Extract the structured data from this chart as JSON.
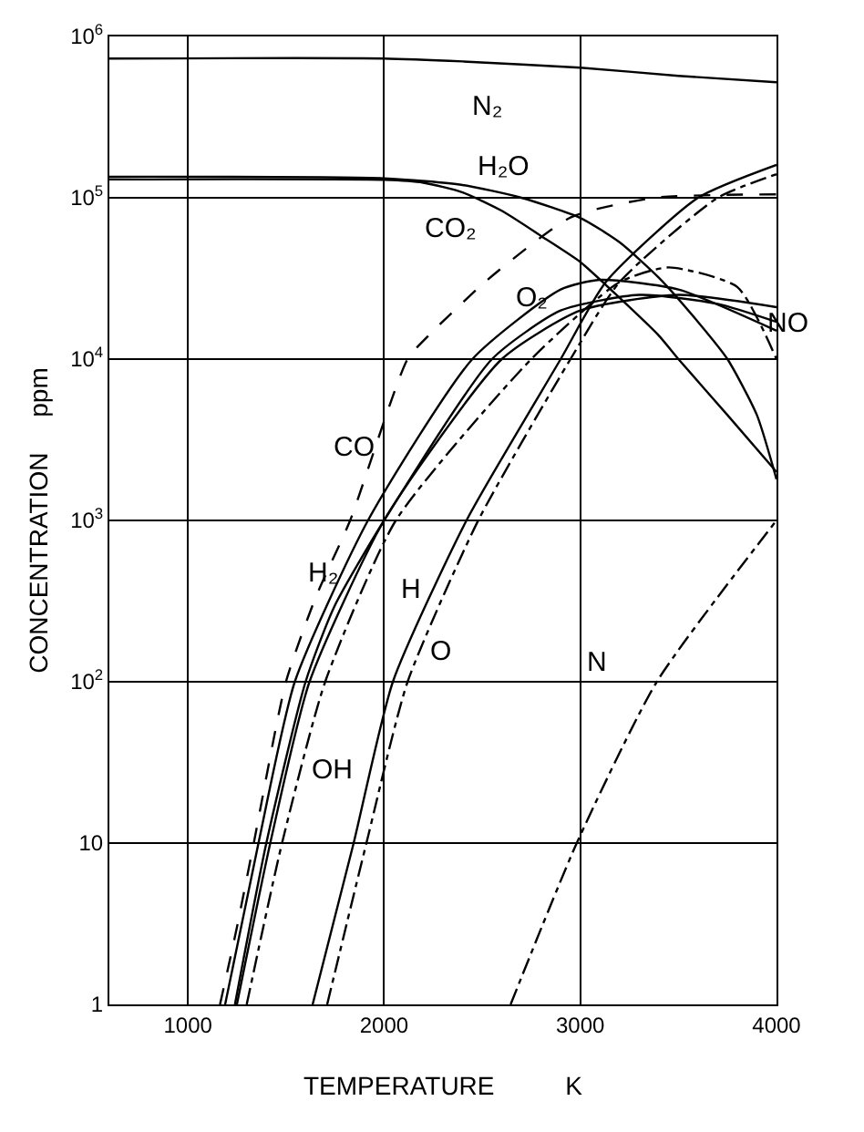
{
  "chart_data": {
    "type": "line",
    "xlabel": "TEMPERATURE          K",
    "ylabel": "CONCENTRATION     ppm",
    "log": "y",
    "grid": true,
    "marker": "none",
    "xlim": [
      600,
      4000
    ],
    "xticks": [
      1000,
      2000,
      3000,
      4000
    ],
    "ylim": [
      1,
      1000000
    ],
    "yticks": [
      1,
      10,
      {
        "value": 100,
        "label": "10$^{2}$"
      },
      {
        "value": 1000,
        "label": "10$^{3}$"
      },
      {
        "value": 10000,
        "label": "10$^{4}$"
      },
      {
        "value": 100000,
        "label": "10$^{5}$"
      },
      {
        "value": 1000000,
        "label": "10$^{6}$"
      }
    ],
    "series": [
      {
        "name": "N₂",
        "color": "#000000",
        "line_style": "solid",
        "x": [
          600,
          2000,
          2400,
          3000,
          3500,
          4000
        ],
        "values": [
          730000,
          730000,
          700000,
          640000,
          570000,
          520000
        ]
      },
      {
        "name": "H₂O",
        "color": "#000000",
        "line_style": "solid",
        "x": [
          600,
          2000,
          2400,
          2700,
          3000,
          3200,
          3400,
          3600,
          3750,
          3900,
          4000
        ],
        "values": [
          135000,
          132000,
          120000,
          100000,
          75000,
          53000,
          32000,
          17000,
          10000,
          4500,
          1800
        ]
      },
      {
        "name": "CO₂",
        "color": "#000000",
        "line_style": "solid",
        "x": [
          600,
          2000,
          2200,
          2400,
          2600,
          2800,
          3000,
          3200,
          3400,
          3500,
          3750,
          4000
        ],
        "values": [
          130000,
          129000,
          124000,
          108000,
          83000,
          58000,
          40000,
          24000,
          14000,
          10000,
          4500,
          2000
        ]
      },
      {
        "name": "CO",
        "color": "#000000",
        "line_style": "dashed",
        "x": [
          1164,
          1250,
          1336,
          1500,
          1650,
          1827,
          2120,
          2227,
          2527,
          2955,
          3380,
          4000
        ],
        "values": [
          1,
          3,
          10,
          100,
          330,
          1000,
          10000,
          14000,
          31000,
          76000,
          100000,
          105000
        ]
      },
      {
        "name": "O₂",
        "color": "#000000",
        "line_style": "solid",
        "x": [
          1190,
          1360,
          1545,
          1918,
          2450,
          2900,
          3100,
          3500,
          4000
        ],
        "values": [
          1,
          10,
          100,
          1000,
          10000,
          27000,
          31000,
          27000,
          15000
        ]
      },
      {
        "name": "H₂",
        "color": "#000000",
        "line_style": "solid",
        "x": [
          1240,
          1400,
          1600,
          1745,
          2000,
          2550,
          2900,
          3300,
          3700,
          4000
        ],
        "values": [
          1,
          10,
          100,
          290,
          1000,
          10000,
          20000,
          25000,
          22000,
          17000
        ]
      },
      {
        "name": "NO",
        "color": "#000000",
        "line_style": "solid",
        "x": [
          1250,
          1420,
          1620,
          2000,
          2600,
          3000,
          3500,
          4000
        ],
        "values": [
          1,
          10,
          100,
          1000,
          10000,
          20000,
          25000,
          21000
        ]
      },
      {
        "name": "OH",
        "color": "#000000",
        "line_style": "dashdot",
        "x": [
          1300,
          1480,
          1700,
          2060,
          2750,
          3200,
          3450,
          3800,
          4000
        ],
        "values": [
          1,
          10,
          100,
          1000,
          10000,
          30000,
          37000,
          28000,
          10000
        ]
      },
      {
        "name": "H",
        "color": "#000000",
        "line_style": "solid",
        "x": [
          1636,
          1845,
          2045,
          2420,
          2900,
          3130,
          3600,
          4000
        ],
        "values": [
          1,
          10,
          100,
          1000,
          10000,
          30000,
          100000,
          160000
        ]
      },
      {
        "name": "O",
        "color": "#000000",
        "line_style": "dashdot",
        "x": [
          1710,
          1910,
          2120,
          2480,
          2950,
          3200,
          3700,
          4000
        ],
        "values": [
          1,
          10,
          100,
          1000,
          10000,
          30000,
          100000,
          140000
        ]
      },
      {
        "name": "N",
        "color": "#000000",
        "line_style": "dashdot",
        "x": [
          2645,
          2982,
          3390,
          4000
        ],
        "values": [
          1,
          10,
          100,
          1000
        ]
      }
    ]
  }
}
